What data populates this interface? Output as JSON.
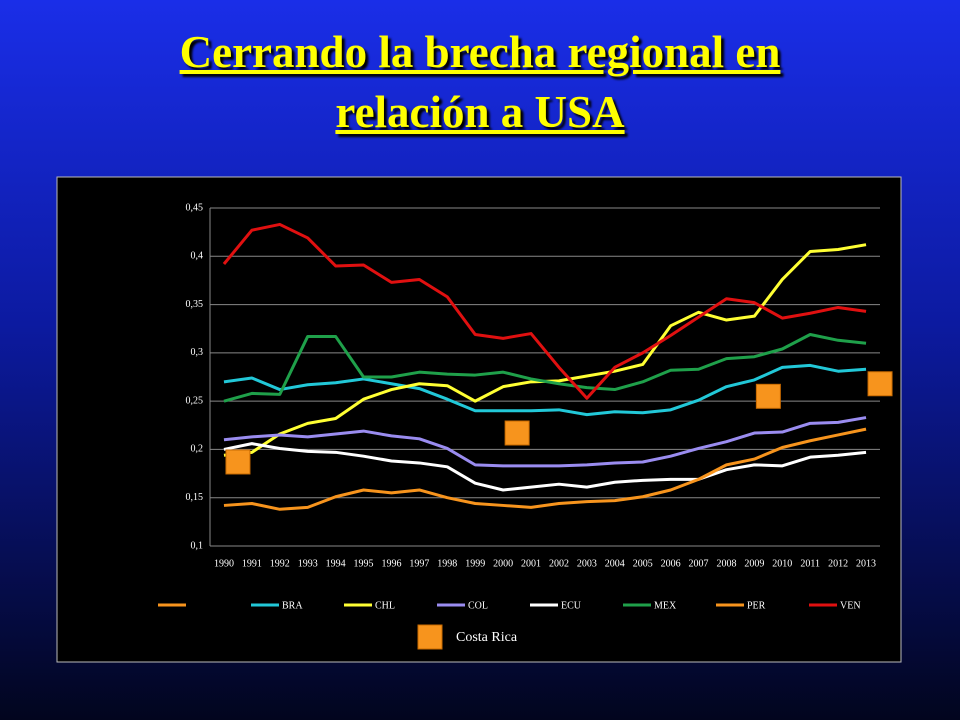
{
  "slide_title": [
    "Cerrando la brecha regional en",
    "relación a USA"
  ],
  "chart_data": {
    "type": "line",
    "categories": [
      "1990",
      "1991",
      "1992",
      "1993",
      "1994",
      "1995",
      "1996",
      "1997",
      "1998",
      "1999",
      "2000",
      "2001",
      "2002",
      "2003",
      "2004",
      "2005",
      "2006",
      "2007",
      "2008",
      "2009",
      "2010",
      "2011",
      "2012",
      "2013"
    ],
    "ylim": [
      0.1,
      0.45
    ],
    "yticks": [
      {
        "value": 0.1,
        "label": "0,1"
      },
      {
        "value": 0.15,
        "label": "0,15"
      },
      {
        "value": 0.2,
        "label": "0,2"
      },
      {
        "value": 0.25,
        "label": "0,25"
      },
      {
        "value": 0.3,
        "label": "0,3"
      },
      {
        "value": 0.35,
        "label": "0,35"
      },
      {
        "value": 0.4,
        "label": "0,4"
      },
      {
        "value": 0.45,
        "label": "0,45"
      }
    ],
    "grid": true,
    "legend": "bottom",
    "series": [
      {
        "name": "BRA",
        "color": "#22c8d8",
        "values": [
          0.27,
          0.274,
          0.262,
          0.267,
          0.269,
          0.273,
          0.268,
          0.263,
          0.252,
          0.24,
          0.24,
          0.24,
          0.241,
          0.236,
          0.239,
          0.238,
          0.241,
          0.251,
          0.265,
          0.272,
          0.285,
          0.287,
          0.281,
          0.283
        ]
      },
      {
        "name": "CHL",
        "color": "#ffff33",
        "values": [
          0.194,
          0.197,
          0.216,
          0.227,
          0.232,
          0.252,
          0.262,
          0.268,
          0.266,
          0.25,
          0.265,
          0.27,
          0.271,
          0.276,
          0.281,
          0.288,
          0.328,
          0.342,
          0.334,
          0.338,
          0.376,
          0.405,
          0.407,
          0.412
        ]
      },
      {
        "name": "COL",
        "color": "#9a8cf0",
        "values": [
          0.21,
          0.213,
          0.215,
          0.213,
          0.216,
          0.219,
          0.214,
          0.211,
          0.201,
          0.184,
          0.183,
          0.183,
          0.183,
          0.184,
          0.186,
          0.187,
          0.193,
          0.201,
          0.208,
          0.217,
          0.218,
          0.227,
          0.228,
          0.233
        ]
      },
      {
        "name": "ECU",
        "color": "#ffffff",
        "values": [
          0.2,
          0.206,
          0.201,
          0.198,
          0.197,
          0.193,
          0.188,
          0.186,
          0.182,
          0.165,
          0.158,
          0.161,
          0.164,
          0.161,
          0.166,
          0.168,
          0.169,
          0.169,
          0.179,
          0.184,
          0.183,
          0.192,
          0.194,
          0.197
        ]
      },
      {
        "name": "MEX",
        "color": "#1fa04a",
        "values": [
          0.25,
          0.258,
          0.257,
          0.317,
          0.317,
          0.275,
          0.275,
          0.28,
          0.278,
          0.277,
          0.28,
          0.273,
          0.268,
          0.264,
          0.262,
          0.27,
          0.282,
          0.283,
          0.294,
          0.296,
          0.304,
          0.319,
          0.313,
          0.31
        ]
      },
      {
        "name": "PER",
        "color": "#f7941d",
        "values": [
          0.142,
          0.144,
          0.138,
          0.14,
          0.151,
          0.158,
          0.155,
          0.158,
          0.15,
          0.144,
          0.142,
          0.14,
          0.144,
          0.146,
          0.147,
          0.151,
          0.158,
          0.169,
          0.184,
          0.19,
          0.202,
          0.209,
          0.215,
          0.221
        ]
      },
      {
        "name": "VEN",
        "color": "#e01010",
        "values": [
          0.392,
          0.427,
          0.433,
          0.419,
          0.39,
          0.391,
          0.373,
          0.376,
          0.358,
          0.319,
          0.315,
          0.32,
          0.285,
          0.253,
          0.285,
          0.3,
          0.318,
          0.337,
          0.356,
          0.352,
          0.336,
          0.341,
          0.347,
          0.343
        ]
      },
      {
        "name": "Costa Rica",
        "color": "#f7941d",
        "marker": "square",
        "values": [
          0.187,
          null,
          null,
          null,
          null,
          null,
          null,
          null,
          null,
          null,
          0.217,
          null,
          null,
          null,
          null,
          null,
          null,
          null,
          null,
          0.255,
          null,
          null,
          null,
          0.268
        ]
      }
    ]
  }
}
